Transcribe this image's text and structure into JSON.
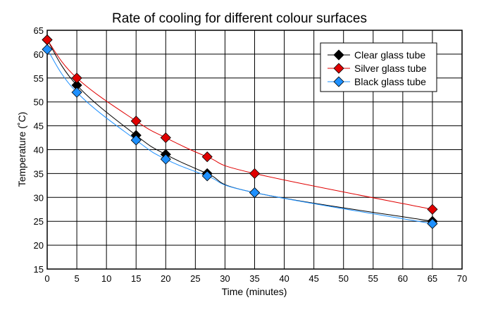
{
  "chart_data": {
    "type": "line",
    "title": "Rate of cooling for different colour surfaces",
    "xlabel": "Time (minutes)",
    "ylabel": "Temperature (˚C)",
    "xlim": [
      0,
      70
    ],
    "ylim": [
      15,
      65
    ],
    "xticks": [
      0,
      5,
      10,
      15,
      20,
      25,
      30,
      35,
      40,
      45,
      50,
      55,
      60,
      65,
      70
    ],
    "yticks": [
      15,
      20,
      25,
      30,
      35,
      40,
      45,
      50,
      55,
      60,
      65
    ],
    "grid": true,
    "legend_position": "top-right",
    "x": [
      0,
      5,
      15,
      20,
      27,
      35,
      65
    ],
    "series": [
      {
        "name": "Clear glass tube",
        "color": "#000000",
        "values": [
          63,
          53.5,
          43,
          39,
          35,
          31,
          25
        ]
      },
      {
        "name": "Silver glass tube",
        "color": "#e00000",
        "values": [
          63,
          55,
          46,
          42.5,
          38.5,
          35,
          27.5
        ]
      },
      {
        "name": "Black glass tube",
        "color": "#1e90ff",
        "values": [
          61,
          52,
          42,
          38,
          34.5,
          31,
          24.5
        ]
      }
    ]
  }
}
